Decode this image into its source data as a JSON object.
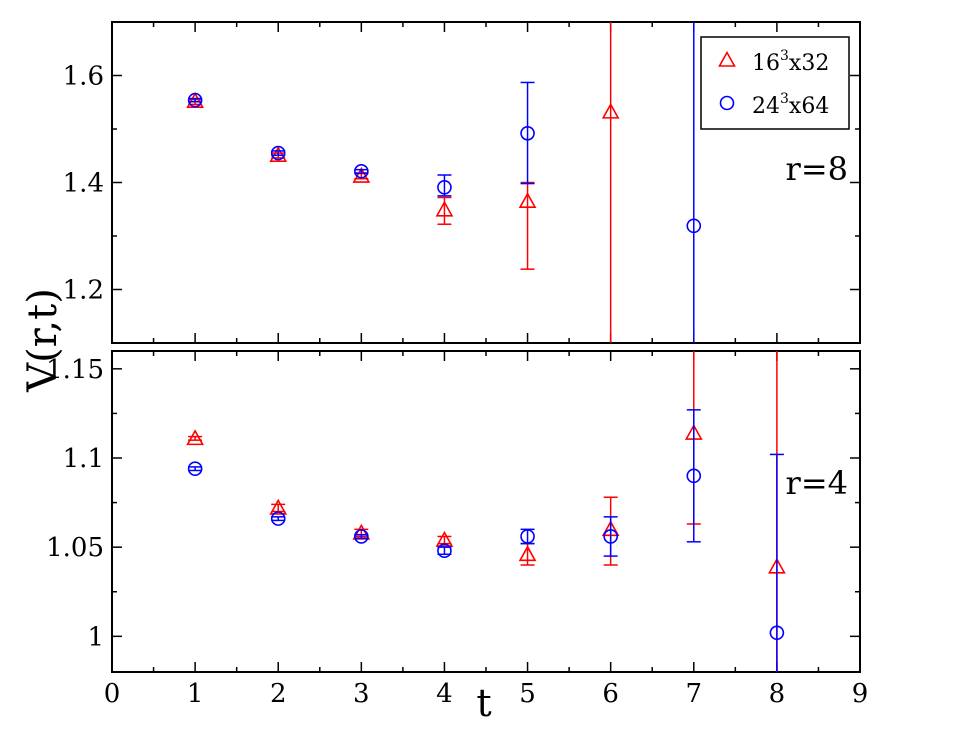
{
  "chart_data": [
    {
      "type": "scatter",
      "panel": "top",
      "annotation": "r=8",
      "ylim": [
        1.1,
        1.7
      ],
      "xlim": [
        0,
        9
      ],
      "yticks": [
        1.2,
        1.4,
        1.6
      ],
      "ytick_labels": [
        "1.2",
        "1.4",
        "1.6"
      ],
      "series": [
        {
          "name": "16^3x32",
          "label_base": "16",
          "label_sup": "3",
          "label_tail": "x32",
          "marker": "triangle",
          "color": "#ff0000",
          "x": [
            1,
            2,
            3,
            4,
            5,
            6
          ],
          "y": [
            1.552,
            1.451,
            1.412,
            1.349,
            1.365,
            1.532
          ],
          "yerr_low": [
            1.546,
            1.446,
            1.407,
            1.322,
            1.238,
            1.0
          ],
          "yerr_high": [
            1.555,
            1.455,
            1.418,
            1.372,
            1.4,
            1.8
          ]
        },
        {
          "name": "24^3x64",
          "label_base": "24",
          "label_sup": "3",
          "label_tail": "x64",
          "marker": "circle",
          "color": "#0000ff",
          "x": [
            1,
            2,
            3,
            4,
            5,
            7
          ],
          "y": [
            1.554,
            1.455,
            1.421,
            1.391,
            1.492,
            1.319
          ],
          "yerr_low": [
            1.551,
            1.451,
            1.417,
            1.375,
            1.398,
            1.0
          ],
          "yerr_high": [
            1.557,
            1.459,
            1.424,
            1.414,
            1.587,
            1.8
          ]
        }
      ]
    },
    {
      "type": "scatter",
      "panel": "bottom",
      "annotation": "r=4",
      "ylim": [
        0.98,
        1.16
      ],
      "xlim": [
        0,
        9
      ],
      "xticks": [
        0,
        1,
        2,
        3,
        4,
        5,
        6,
        7,
        8,
        9
      ],
      "xtick_labels": [
        "0",
        "1",
        "2",
        "3",
        "4",
        "5",
        "6",
        "7",
        "8",
        "9"
      ],
      "yticks": [
        1.0,
        1.05,
        1.1,
        1.15
      ],
      "ytick_labels": [
        "1",
        "1.05",
        "1.1",
        "1.15"
      ],
      "series": [
        {
          "name": "16^3x32",
          "marker": "triangle",
          "color": "#ff0000",
          "x": [
            1,
            2,
            3,
            4,
            5,
            6,
            7,
            8
          ],
          "y": [
            1.111,
            1.072,
            1.058,
            1.054,
            1.046,
            1.06,
            1.114,
            1.039
          ],
          "yerr_low": [
            1.11,
            1.07,
            1.056,
            1.052,
            1.04,
            1.04,
            1.063,
            0.98
          ],
          "yerr_high": [
            1.112,
            1.074,
            1.06,
            1.056,
            1.052,
            1.078,
            1.16,
            1.16
          ]
        },
        {
          "name": "24^3x64",
          "marker": "circle",
          "color": "#0000ff",
          "x": [
            1,
            2,
            3,
            4,
            5,
            6,
            7,
            8
          ],
          "y": [
            1.094,
            1.066,
            1.056,
            1.048,
            1.056,
            1.056,
            1.09,
            1.002
          ],
          "yerr_low": [
            1.093,
            1.065,
            1.055,
            1.046,
            1.052,
            1.045,
            1.053,
            0.98
          ],
          "yerr_high": [
            1.095,
            1.067,
            1.057,
            1.05,
            1.06,
            1.067,
            1.127,
            1.102
          ]
        }
      ]
    }
  ],
  "ylabel": "V(r,t)",
  "xlabel": "t"
}
